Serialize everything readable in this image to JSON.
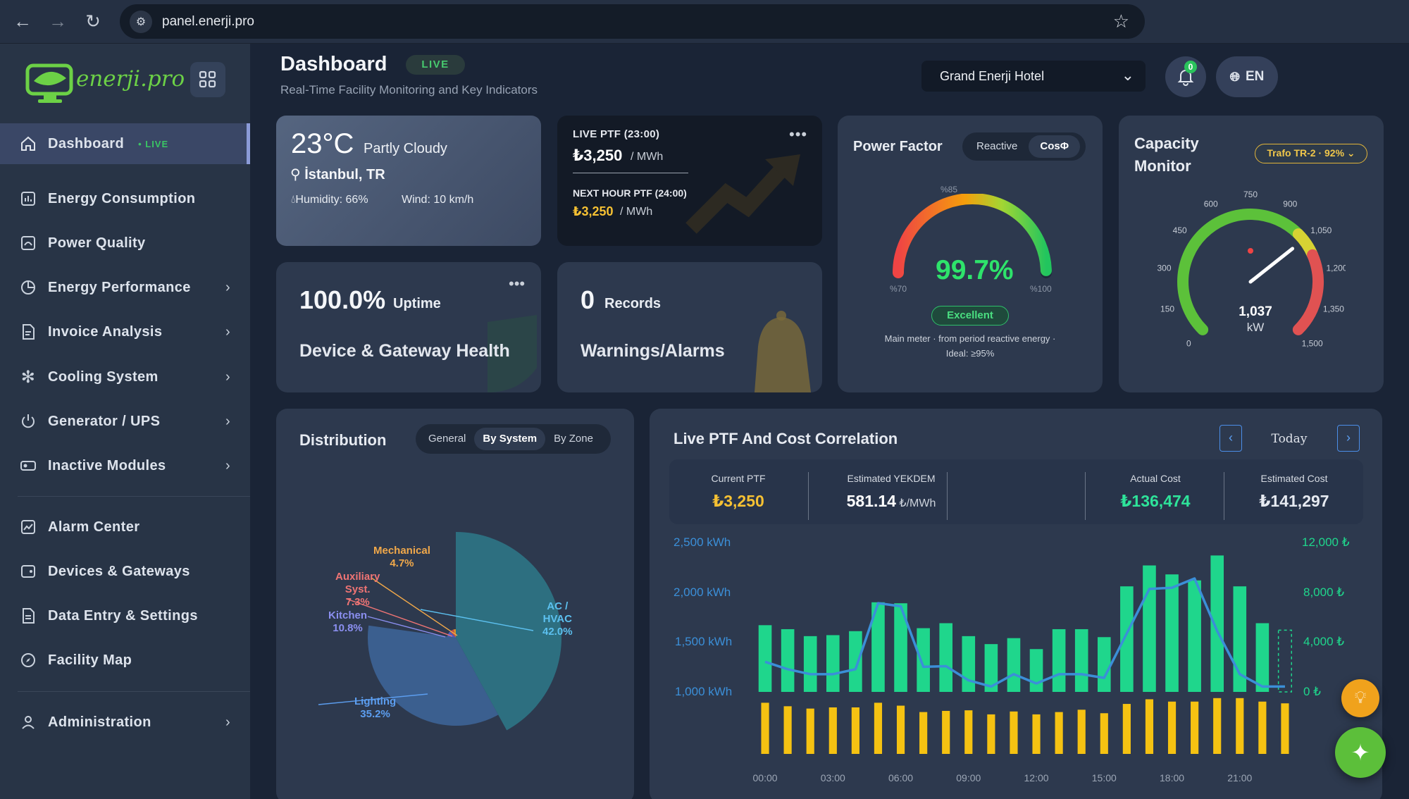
{
  "browser": {
    "url": "panel.enerji.pro"
  },
  "brand": {
    "logo_text": "enerji.pro"
  },
  "sidebar": {
    "items": [
      {
        "label": "Dashboard",
        "badge": "LIVE"
      },
      {
        "label": "Energy Consumption"
      },
      {
        "label": "Power Quality"
      },
      {
        "label": "Energy Performance"
      },
      {
        "label": "Invoice Analysis"
      },
      {
        "label": "Cooling System"
      },
      {
        "label": "Generator / UPS"
      },
      {
        "label": "Inactive Modules"
      },
      {
        "label": "Alarm Center"
      },
      {
        "label": "Devices & Gateways"
      },
      {
        "label": "Data Entry & Settings"
      },
      {
        "label": "Facility Map"
      },
      {
        "label": "Administration"
      }
    ]
  },
  "header": {
    "title": "Dashboard",
    "live": "LIVE",
    "subtitle": "Real-Time Facility Monitoring and Key Indicators",
    "facility": "Grand Enerji Hotel",
    "notifications": "0",
    "language": "EN"
  },
  "weather": {
    "temp": "23°C",
    "condition": "Partly Cloudy",
    "city": "İstanbul, TR",
    "humidity": "Humidity: 66%",
    "wind": "Wind: 10 km/h"
  },
  "ptf": {
    "live_label": "LIVE PTF (23:00)",
    "live_value": "₺3,250",
    "unit": "/ MWh",
    "next_label": "NEXT HOUR PTF (24:00)",
    "next_value": "₺3,250"
  },
  "uptime": {
    "value": "100.0%",
    "label": "Uptime",
    "title": "Device & Gateway Health"
  },
  "alarms": {
    "value": "0",
    "label": "Records",
    "title": "Warnings/Alarms"
  },
  "power_factor": {
    "title": "Power Factor",
    "tabs": [
      "Reactive",
      "CosΦ"
    ],
    "value": "99.7%",
    "level": 0.997,
    "status": "Excellent",
    "note_line1": "Main meter · from period reactive energy ·",
    "note_line2": "Ideal: ≥95%",
    "label_min": "%70",
    "label_mid": "%85",
    "label_max": "%100"
  },
  "capacity": {
    "title_line1": "Capacity",
    "title_line2": "Monitor",
    "selector": "Trafo TR-2 · 92%",
    "value": "1,037",
    "value_num": 1037,
    "unit": "kW",
    "max": 1500,
    "ticks": [
      "0",
      "150",
      "300",
      "450",
      "600",
      "750",
      "900",
      "1,050",
      "1,200",
      "1,350",
      "1,500"
    ]
  },
  "distribution": {
    "title": "Distribution",
    "tabs": [
      "General",
      "By System",
      "By Zone"
    ],
    "slices": [
      {
        "name_lines": [
          "AC /",
          "HVAC"
        ],
        "pct": "42.0%",
        "value": 42.0,
        "color": "#2d6f80"
      },
      {
        "name_lines": [
          "Lighting"
        ],
        "pct": "35.2%",
        "value": 35.2,
        "color": "#3b5f8f"
      },
      {
        "name_lines": [
          "Kitchen"
        ],
        "pct": "10.8%",
        "value": 10.8,
        "color": "#4a5dbf"
      },
      {
        "name_lines": [
          "Auxiliary",
          "Syst."
        ],
        "pct": "7.3%",
        "value": 7.3,
        "color": "#c04a4a"
      },
      {
        "name_lines": [
          "Mechanical"
        ],
        "pct": "4.7%",
        "value": 4.7,
        "color": "#d98e2c"
      }
    ]
  },
  "correlation": {
    "title": "Live PTF And Cost Correlation",
    "date": "Today",
    "kpis": [
      {
        "label": "Current PTF",
        "value": "₺3,250",
        "unit": "",
        "color": "#f6c133"
      },
      {
        "label": "Estimated YEKDEM",
        "value": "581.14",
        "unit": "₺/MWh",
        "color": "#ffffff"
      },
      {
        "label": "Actual Cost",
        "value": "₺136,474",
        "unit": "",
        "color": "#2ee39a"
      },
      {
        "label": "Estimated Cost",
        "value": "₺141,297",
        "unit": "",
        "color": "#e6eaf1"
      }
    ]
  },
  "chart_data": {
    "type": "bar",
    "y_left_ticks": [
      "2,500 kWh",
      "2,000 kWh",
      "1,500 kWh",
      "1,000 kWh"
    ],
    "y_right_ticks": [
      "12,000 ₺",
      "8,000 ₺",
      "4,000 ₺",
      "0 ₺"
    ],
    "x_ticks": [
      "00:00",
      "03:00",
      "06:00",
      "09:00",
      "12:00",
      "15:00",
      "18:00",
      "21:00"
    ],
    "ylim": [
      1000,
      2500
    ],
    "series": [
      {
        "name": "consumption_kwh",
        "values": [
          1670,
          1630,
          1560,
          1570,
          1610,
          1900,
          1890,
          1640,
          1690,
          1560,
          1480,
          1540,
          1430,
          1630,
          1630,
          1550,
          2060,
          2270,
          2180,
          2120,
          2370,
          2060,
          1690,
          1620
        ]
      },
      {
        "name": "cost_tl",
        "values": [
          8800,
          8200,
          7800,
          8000,
          8000,
          8800,
          8300,
          7200,
          7400,
          7500,
          6800,
          7300,
          6800,
          7200,
          7600,
          7000,
          8600,
          9400,
          9000,
          9000,
          9600,
          9600,
          9000,
          8700
        ]
      },
      {
        "name": "ptf_tl",
        "values": [
          2100,
          1980,
          1900,
          1900,
          1980,
          3050,
          3000,
          2020,
          2030,
          1800,
          1700,
          1900,
          1750,
          1900,
          1900,
          1840,
          2560,
          3280,
          3300,
          3450,
          2600,
          1900,
          1700,
          1700
        ]
      }
    ],
    "colors": {
      "consumption": "#1fd68c",
      "cost": "#f5c212",
      "ptf": "#3b8fd8",
      "forecast": "#1fd68c"
    }
  }
}
